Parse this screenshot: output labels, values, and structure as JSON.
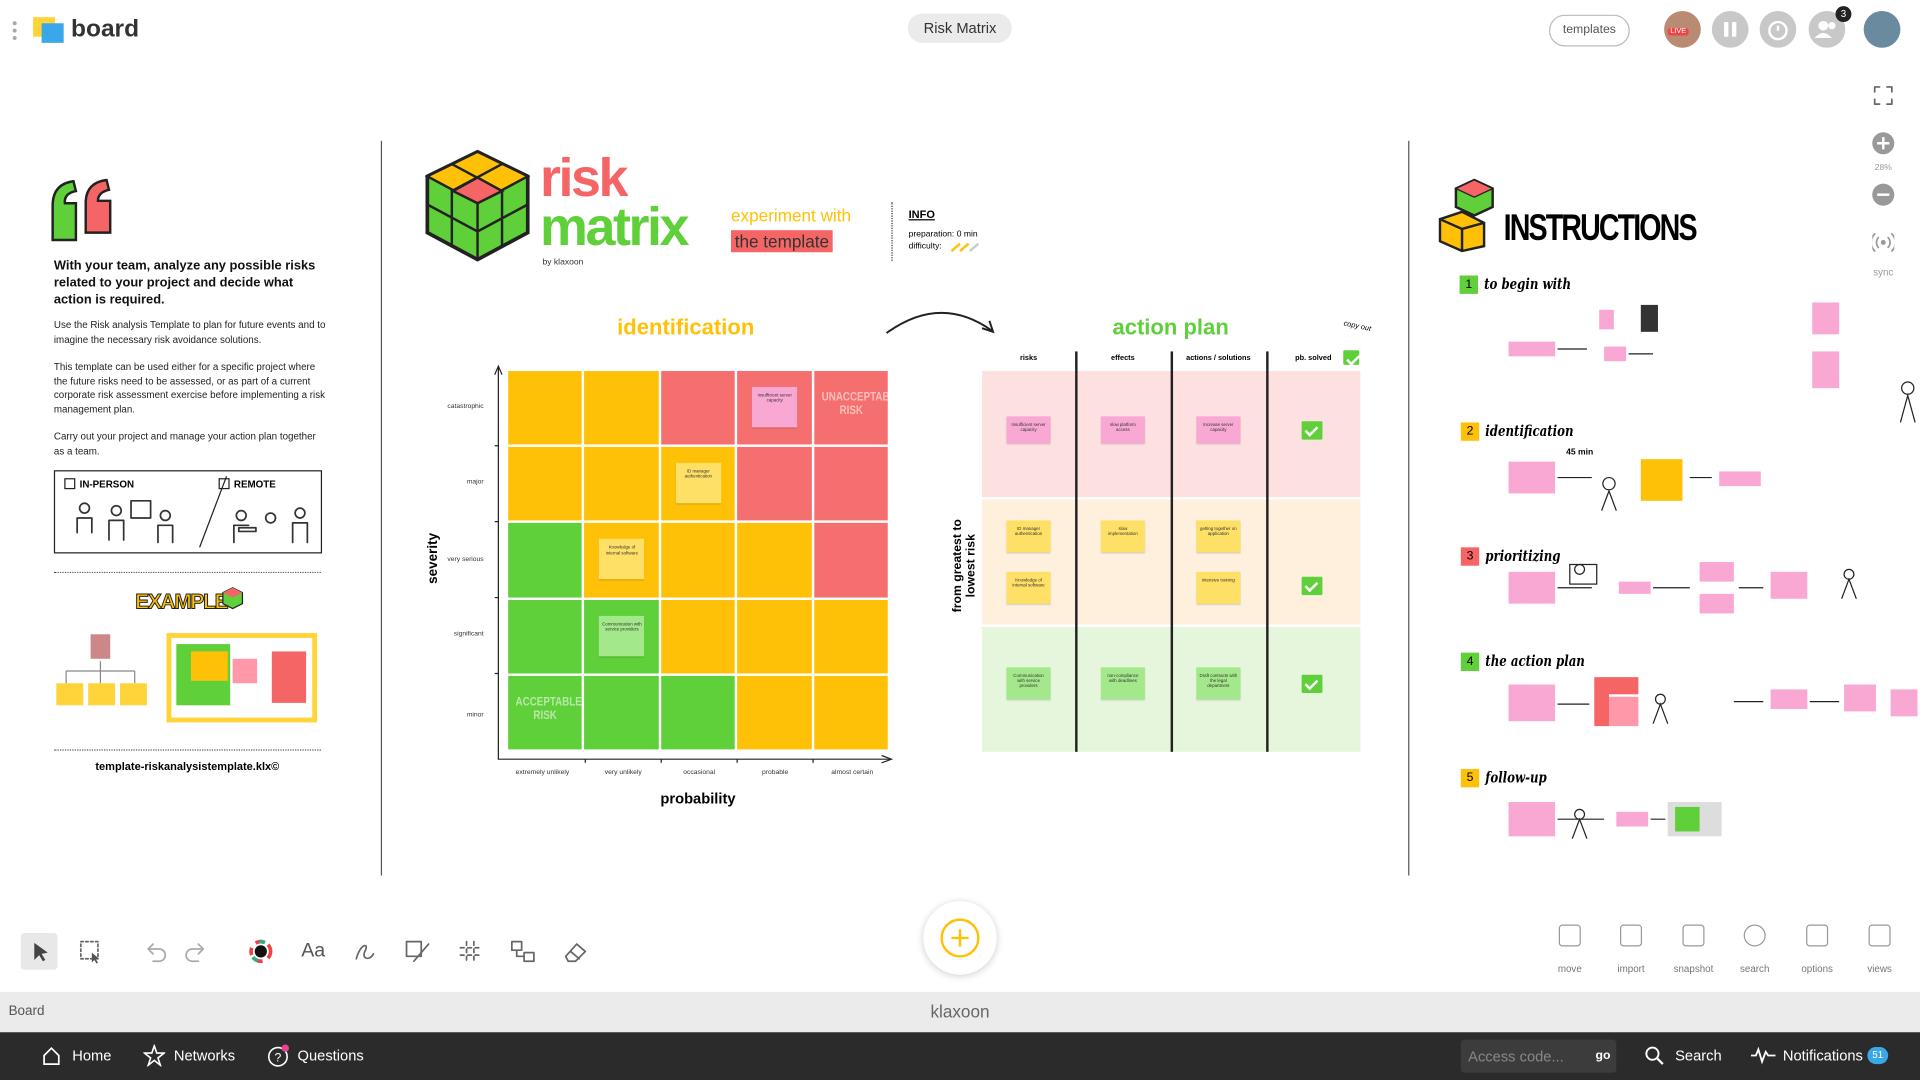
{
  "header": {
    "app_name": "board",
    "board_title": "Risk Matrix",
    "templates_button": "templates",
    "live_badge": "LIVE",
    "participants_count": "3"
  },
  "zoom": {
    "level": "28%",
    "sync": "sync"
  },
  "intro_panel": {
    "lead": "With your team, analyze any possible risks related to your project and decide what action is required.",
    "paragraphs": [
      "Use the Risk analysis Template to plan for future events and to imagine the necessary risk avoidance solutions.",
      "This template can be used either for a specific project where the future risks need to be assessed, or as part of a current corporate risk assessment exercise before implementing a risk management plan.",
      "Carry out your project and manage your action plan together as a team."
    ],
    "modes": [
      "IN-PERSON",
      "REMOTE"
    ],
    "example": "EXAMPLE",
    "file_name": "template-riskanalysistemplate.klx©"
  },
  "hero": {
    "title_top": "risk",
    "title_bottom": "matrix",
    "byline": "by klaxoon",
    "tagline": "experiment with",
    "tagline_highlight": "the template",
    "info_label": "INFO",
    "preparation": "preparation: 0 min",
    "difficulty": "difficulty:"
  },
  "identification": {
    "title": "identification",
    "y_axis_label": "severity",
    "x_axis_label": "probability",
    "severity_levels": [
      "catastrophic",
      "major",
      "very serious",
      "significant",
      "minor"
    ],
    "probability_levels": [
      "extremely unlikely",
      "very unlikely",
      "occasional",
      "probable",
      "almost certain"
    ],
    "zone_labels": [
      "UNACCEPTABLE RISK",
      "ACCEPTABLE RISK"
    ],
    "notes": [
      "Insufficient server capacity",
      "ID manager authentication",
      "Knowledge of internal software",
      "Communication with service providers"
    ]
  },
  "action_plan": {
    "title": "action plan",
    "side_label": "from greatest to lowest risk",
    "columns": [
      "risks",
      "effects",
      "actions / solutions",
      "pb. solved"
    ],
    "copy_label": "copy out",
    "notes": [
      {
        "risk": "Insufficient server capacity",
        "effect": "slow platform access",
        "action": "Increase server capacity"
      },
      {
        "risk": "ID manager authentication",
        "effect": "slow implementation",
        "action": "getting together on application"
      },
      {
        "risk": "Knowledge of internal software",
        "action": "intensive training"
      },
      {
        "risk": "Communication with service providers",
        "effect": "non-compliance with deadlines",
        "action": "Draft contracts with the legal department"
      }
    ]
  },
  "instructions": {
    "title": "INSTRUCTIONS",
    "steps": [
      {
        "number": "1",
        "label": "to begin with"
      },
      {
        "number": "2",
        "label": "identification"
      },
      {
        "number": "3",
        "label": "prioritizing"
      },
      {
        "number": "4",
        "label": "the action plan"
      },
      {
        "number": "5",
        "label": "follow-up"
      }
    ],
    "duration": "45 min"
  },
  "toolbar": {
    "text_tool": "Aa",
    "actions": [
      "move",
      "import",
      "snapshot",
      "search",
      "options",
      "views"
    ]
  },
  "status_bar": {
    "section": "Board",
    "brand": "klaxoon"
  },
  "nav": {
    "items": [
      "Home",
      "Networks",
      "Questions"
    ],
    "access_placeholder": "Access code...",
    "go": "go",
    "search": "Search",
    "notifications": "Notifications",
    "notifications_count": "51"
  }
}
